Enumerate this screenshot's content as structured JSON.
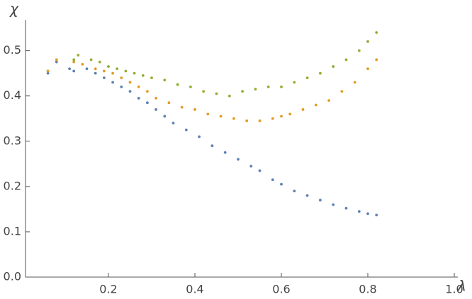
{
  "chart_data": {
    "type": "scatter",
    "x_label": "λ",
    "y_label": "χ",
    "xlim": [
      0,
      1.0
    ],
    "ylim": [
      0,
      0.565
    ],
    "xticks": [
      0.2,
      0.4,
      0.6,
      0.8,
      {
        "value": 1,
        "label": "1.0"
      }
    ],
    "yticks": [
      {
        "value": 0,
        "label": "0.0"
      },
      0.1,
      0.2,
      0.3,
      0.4,
      0.5
    ],
    "series": [
      {
        "color": "#5e81b5",
        "x": [
          0.06,
          0.06,
          0.08,
          0.11,
          0.12,
          0.15,
          0.17,
          0.19,
          0.21,
          0.23,
          0.25,
          0.27,
          0.29,
          0.31,
          0.33,
          0.35,
          0.38,
          0.41,
          0.44,
          0.47,
          0.5,
          0.53,
          0.55,
          0.58,
          0.6,
          0.63,
          0.66,
          0.69,
          0.72,
          0.75,
          0.78,
          0.8,
          0.82
        ],
        "values": [
          0.45,
          0.455,
          0.475,
          0.46,
          0.455,
          0.46,
          0.45,
          0.44,
          0.43,
          0.42,
          0.41,
          0.395,
          0.385,
          0.37,
          0.355,
          0.34,
          0.325,
          0.31,
          0.29,
          0.275,
          0.26,
          0.245,
          0.235,
          0.215,
          0.205,
          0.19,
          0.18,
          0.17,
          0.16,
          0.152,
          0.145,
          0.14,
          0.137
        ]
      },
      {
        "color": "#e19c24",
        "x": [
          0.06,
          0.08,
          0.12,
          0.14,
          0.17,
          0.19,
          0.21,
          0.23,
          0.25,
          0.27,
          0.29,
          0.31,
          0.34,
          0.37,
          0.4,
          0.43,
          0.46,
          0.49,
          0.52,
          0.55,
          0.58,
          0.6,
          0.62,
          0.65,
          0.68,
          0.71,
          0.74,
          0.77,
          0.8,
          0.82
        ],
        "values": [
          0.455,
          0.48,
          0.475,
          0.47,
          0.46,
          0.455,
          0.45,
          0.44,
          0.43,
          0.42,
          0.41,
          0.395,
          0.385,
          0.375,
          0.37,
          0.36,
          0.355,
          0.35,
          0.345,
          0.345,
          0.35,
          0.355,
          0.36,
          0.37,
          0.38,
          0.39,
          0.41,
          0.43,
          0.46,
          0.48
        ]
      },
      {
        "color": "#8fb032",
        "x": [
          0.12,
          0.13,
          0.16,
          0.18,
          0.2,
          0.22,
          0.24,
          0.26,
          0.28,
          0.3,
          0.33,
          0.36,
          0.39,
          0.42,
          0.45,
          0.48,
          0.51,
          0.54,
          0.57,
          0.6,
          0.63,
          0.66,
          0.69,
          0.72,
          0.75,
          0.78,
          0.8,
          0.82
        ],
        "values": [
          0.48,
          0.49,
          0.48,
          0.475,
          0.465,
          0.46,
          0.455,
          0.45,
          0.445,
          0.44,
          0.435,
          0.425,
          0.42,
          0.41,
          0.405,
          0.4,
          0.41,
          0.415,
          0.42,
          0.42,
          0.43,
          0.44,
          0.45,
          0.465,
          0.48,
          0.5,
          0.52,
          0.54
        ]
      }
    ]
  }
}
